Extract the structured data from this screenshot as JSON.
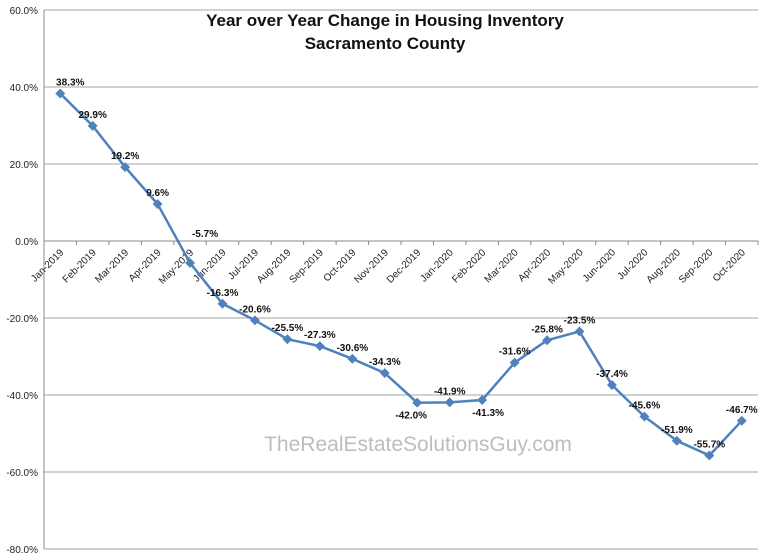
{
  "chart_data": {
    "type": "line",
    "title": "Year over  Year Change in Housing Inventory",
    "subtitle": "Sacramento County",
    "watermark": "TheRealEstateSolutionsGuy.com",
    "ylim": [
      -80,
      60
    ],
    "yticks": [
      60,
      40,
      20,
      0,
      -20,
      -40,
      -60,
      -80
    ],
    "ytick_labels": [
      "60.0%",
      "40.0%",
      "20.0%",
      "0.0%",
      "-20.0%",
      "-40.0%",
      "-60.0%",
      "-80.0%"
    ],
    "grid": true,
    "line_color": "#4f81bd",
    "categories": [
      "Jan-2019",
      "Feb-2019",
      "Mar-2019",
      "Apr-2019",
      "May-2019",
      "Jun-2019",
      "Jul-2019",
      "Aug-2019",
      "Sep-2019",
      "Oct-2019",
      "Nov-2019",
      "Dec-2019",
      "Jan-2020",
      "Feb-2020",
      "Mar-2020",
      "Apr-2020",
      "May-2020",
      "Jun-2020",
      "Jul-2020",
      "Aug-2020",
      "Sep-2020",
      "Oct-2020"
    ],
    "values": [
      38.3,
      29.9,
      19.2,
      9.6,
      -5.7,
      -16.3,
      -20.6,
      -25.5,
      -27.3,
      -30.6,
      -34.3,
      -42.0,
      -41.9,
      -41.3,
      -31.6,
      -25.8,
      -23.5,
      -37.4,
      -45.6,
      -51.9,
      -55.7,
      -46.7
    ],
    "data_labels": [
      "38.3%",
      "29.9%",
      "19.2%",
      "9.6%",
      "-5.7%",
      "-16.3%",
      "-20.6%",
      "-25.5%",
      "-27.3%",
      "-30.6%",
      "-34.3%",
      "-42.0%",
      "-41.9%",
      "-41.3%",
      "-31.6%",
      "-25.8%",
      "-23.5%",
      "-37.4%",
      "-45.6%",
      "-51.9%",
      "-55.7%",
      "-46.7%"
    ]
  }
}
